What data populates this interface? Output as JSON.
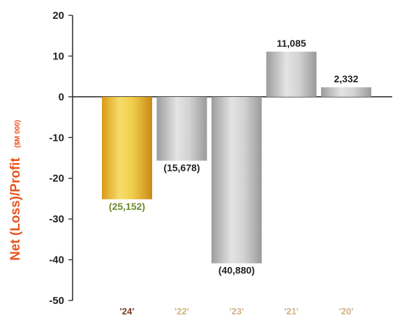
{
  "chart_data": {
    "type": "bar",
    "categories": [
      "'24'",
      "'22'",
      "'23'",
      "'21'",
      "'20'"
    ],
    "values": [
      -25.152,
      -15.678,
      -40.88,
      11.085,
      2.332
    ],
    "data_labels": [
      "(25,152)",
      "(15,678)",
      "(40,880)",
      "11,085",
      "2,332"
    ],
    "ylabel": "Net (Loss)/Profit",
    "ylabel_unit": "($M 000)",
    "ylim": [
      -50,
      20
    ],
    "yticks": [
      20,
      10,
      0,
      -10,
      -20,
      -30,
      -40,
      -50
    ],
    "grid": false,
    "legend": "none"
  },
  "colors": {
    "highlight_bar": "#e9b930",
    "highlight_label": "#6b8a2a",
    "neutral_bar": "#b3b3b3",
    "ylabel": "#e8541e",
    "category_label_colors": [
      "#7a3a22",
      "#d1b286",
      "#d1b286",
      "#d1b286",
      "#d1b286"
    ],
    "axis": "#333333"
  }
}
